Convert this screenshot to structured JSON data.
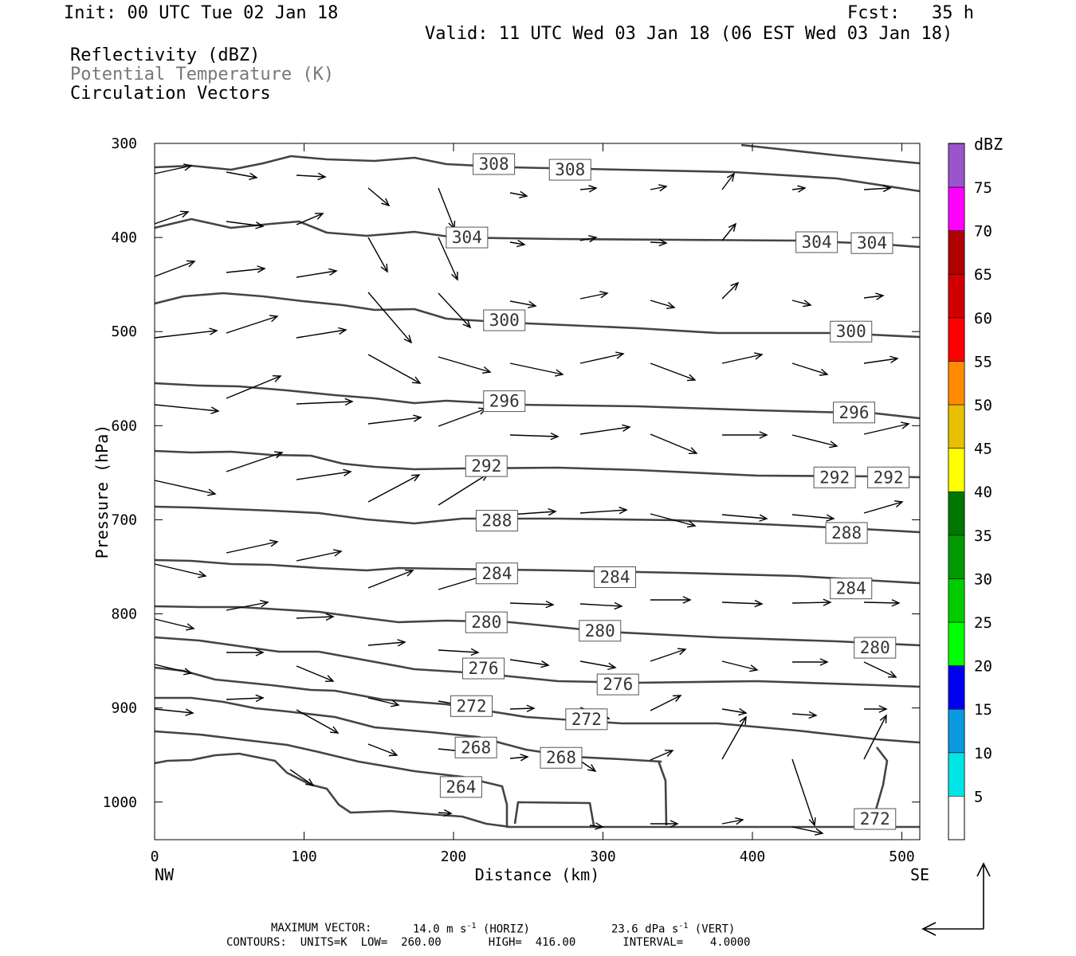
{
  "header": {
    "init": "Init: 00 UTC Tue 02 Jan 18",
    "fcst": "Fcst:   35 h",
    "valid": "Valid: 11 UTC Wed 03 Jan 18 (06 EST Wed 03 Jan 18)",
    "field1": "Reflectivity (dBZ)",
    "field2": "Potential Temperature (K)",
    "field3": "Circulation Vectors"
  },
  "footer": {
    "max_vector_label": "MAXIMUM VECTOR:",
    "max_vector_horiz": "14.0 m s",
    "horiz_tag": "(HORIZ)",
    "max_vector_vert": "23.6 dPa s",
    "vert_tag": "(VERT)",
    "contours_line": "CONTOURS:  UNITS=K  LOW=  260.00       HIGH=  416.00       INTERVAL=    4.0000",
    "exponent": "-1"
  },
  "colors": {
    "contour": "#444444",
    "frame": "#000000"
  },
  "chart_data": {
    "type": "cross-section",
    "xlabel": "Distance (km)",
    "ylabel": "Pressure (hPa)",
    "xlim": [
      0,
      512
    ],
    "ylim": [
      300,
      1040
    ],
    "x_ticks": [
      0,
      100,
      200,
      300,
      400,
      500
    ],
    "y_ticks": [
      300,
      400,
      500,
      600,
      700,
      800,
      900,
      1000
    ],
    "x_end_labels": {
      "left": "NW",
      "right": "SE"
    },
    "contour_labels": [
      {
        "value": "308",
        "x": 227,
        "p": 322
      },
      {
        "value": "308",
        "x": 278,
        "p": 328
      },
      {
        "value": "304",
        "x": 209,
        "p": 400
      },
      {
        "value": "304",
        "x": 443,
        "p": 405
      },
      {
        "value": "304",
        "x": 480,
        "p": 406
      },
      {
        "value": "300",
        "x": 234,
        "p": 488
      },
      {
        "value": "300",
        "x": 466,
        "p": 500
      },
      {
        "value": "296",
        "x": 234,
        "p": 574
      },
      {
        "value": "296",
        "x": 468,
        "p": 586
      },
      {
        "value": "292",
        "x": 222,
        "p": 643
      },
      {
        "value": "292",
        "x": 455,
        "p": 655
      },
      {
        "value": "292",
        "x": 491,
        "p": 655
      },
      {
        "value": "288",
        "x": 229,
        "p": 701
      },
      {
        "value": "288",
        "x": 463,
        "p": 714
      },
      {
        "value": "284",
        "x": 229,
        "p": 757
      },
      {
        "value": "284",
        "x": 308,
        "p": 761
      },
      {
        "value": "284",
        "x": 466,
        "p": 773
      },
      {
        "value": "280",
        "x": 222,
        "p": 809
      },
      {
        "value": "280",
        "x": 298,
        "p": 818
      },
      {
        "value": "280",
        "x": 482,
        "p": 836
      },
      {
        "value": "276",
        "x": 220,
        "p": 858
      },
      {
        "value": "276",
        "x": 310,
        "p": 875
      },
      {
        "value": "272",
        "x": 212,
        "p": 898
      },
      {
        "value": "272",
        "x": 289,
        "p": 912
      },
      {
        "value": "272",
        "x": 482,
        "p": 1018
      },
      {
        "value": "268",
        "x": 215,
        "p": 942
      },
      {
        "value": "268",
        "x": 272,
        "p": 953
      },
      {
        "value": "264",
        "x": 205,
        "p": 984
      }
    ],
    "colorbar": {
      "title": "dBZ",
      "levels": [
        "5",
        "10",
        "15",
        "20",
        "25",
        "30",
        "35",
        "40",
        "45",
        "50",
        "55",
        "60",
        "65",
        "70",
        "75"
      ],
      "colors": [
        "#00e5e5",
        "#0a99e0",
        "#0000ee",
        "#00ff00",
        "#00cc00",
        "#009900",
        "#007700",
        "#ffff00",
        "#e8c000",
        "#ff8c00",
        "#ff0000",
        "#d00000",
        "#b00000",
        "#ff00ff",
        "#9955cc"
      ]
    }
  }
}
